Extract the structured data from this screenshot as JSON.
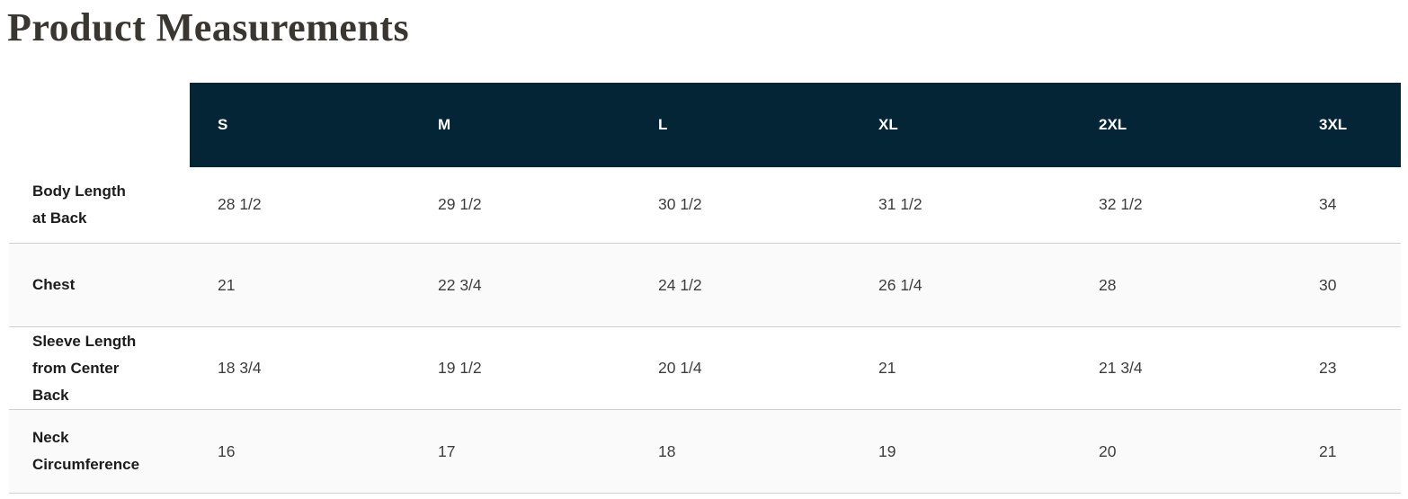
{
  "title": "Product Measurements",
  "colors": {
    "header_bg": "#042536",
    "header_text": "#ffffff",
    "row_stripe": "#fafafa",
    "divider": "#d0d0d0",
    "title_text": "#3a3632",
    "label_text": "#1c1c1c",
    "value_text": "#3d3d3d"
  },
  "table": {
    "size_headers": [
      "S",
      "M",
      "L",
      "XL",
      "2XL",
      "3XL"
    ],
    "rows": [
      {
        "label": "Body Length at Back",
        "values": [
          "28 1/2",
          "29 1/2",
          "30 1/2",
          "31 1/2",
          "32 1/2",
          "34"
        ]
      },
      {
        "label": "Chest",
        "values": [
          "21",
          "22 3/4",
          "24 1/2",
          "26 1/4",
          "28",
          "30"
        ]
      },
      {
        "label": "Sleeve Length from Center Back",
        "values": [
          "18 3/4",
          "19 1/2",
          "20 1/4",
          "21",
          "21 3/4",
          "23"
        ]
      },
      {
        "label": "Neck Circumference",
        "values": [
          "16",
          "17",
          "18",
          "19",
          "20",
          "21"
        ]
      }
    ]
  }
}
